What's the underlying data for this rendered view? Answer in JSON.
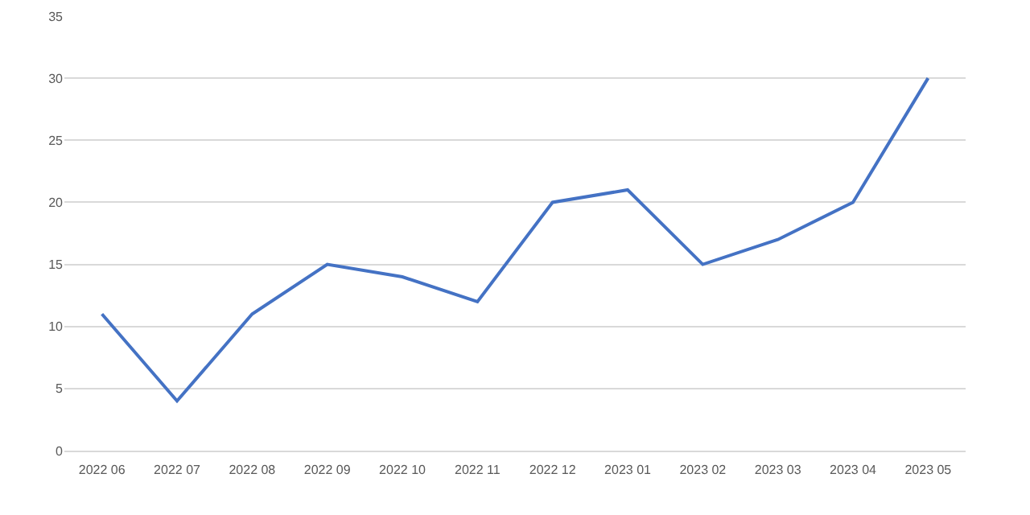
{
  "chart_data": {
    "type": "line",
    "categories": [
      "2022 06",
      "2022 07",
      "2022 08",
      "2022 09",
      "2022 10",
      "2022 11",
      "2022 12",
      "2023 01",
      "2023 02",
      "2023 03",
      "2023 04",
      "2023 05"
    ],
    "series": [
      {
        "color": "#4472c4",
        "values": [
          11,
          4,
          11,
          15,
          14,
          12,
          20,
          21,
          15,
          17,
          20,
          30
        ]
      }
    ],
    "ylim": [
      0,
      35
    ],
    "yticks": [
      0,
      5,
      10,
      15,
      20,
      25,
      30,
      35
    ],
    "grid": "y",
    "marker": "none",
    "line_style": "solid"
  }
}
